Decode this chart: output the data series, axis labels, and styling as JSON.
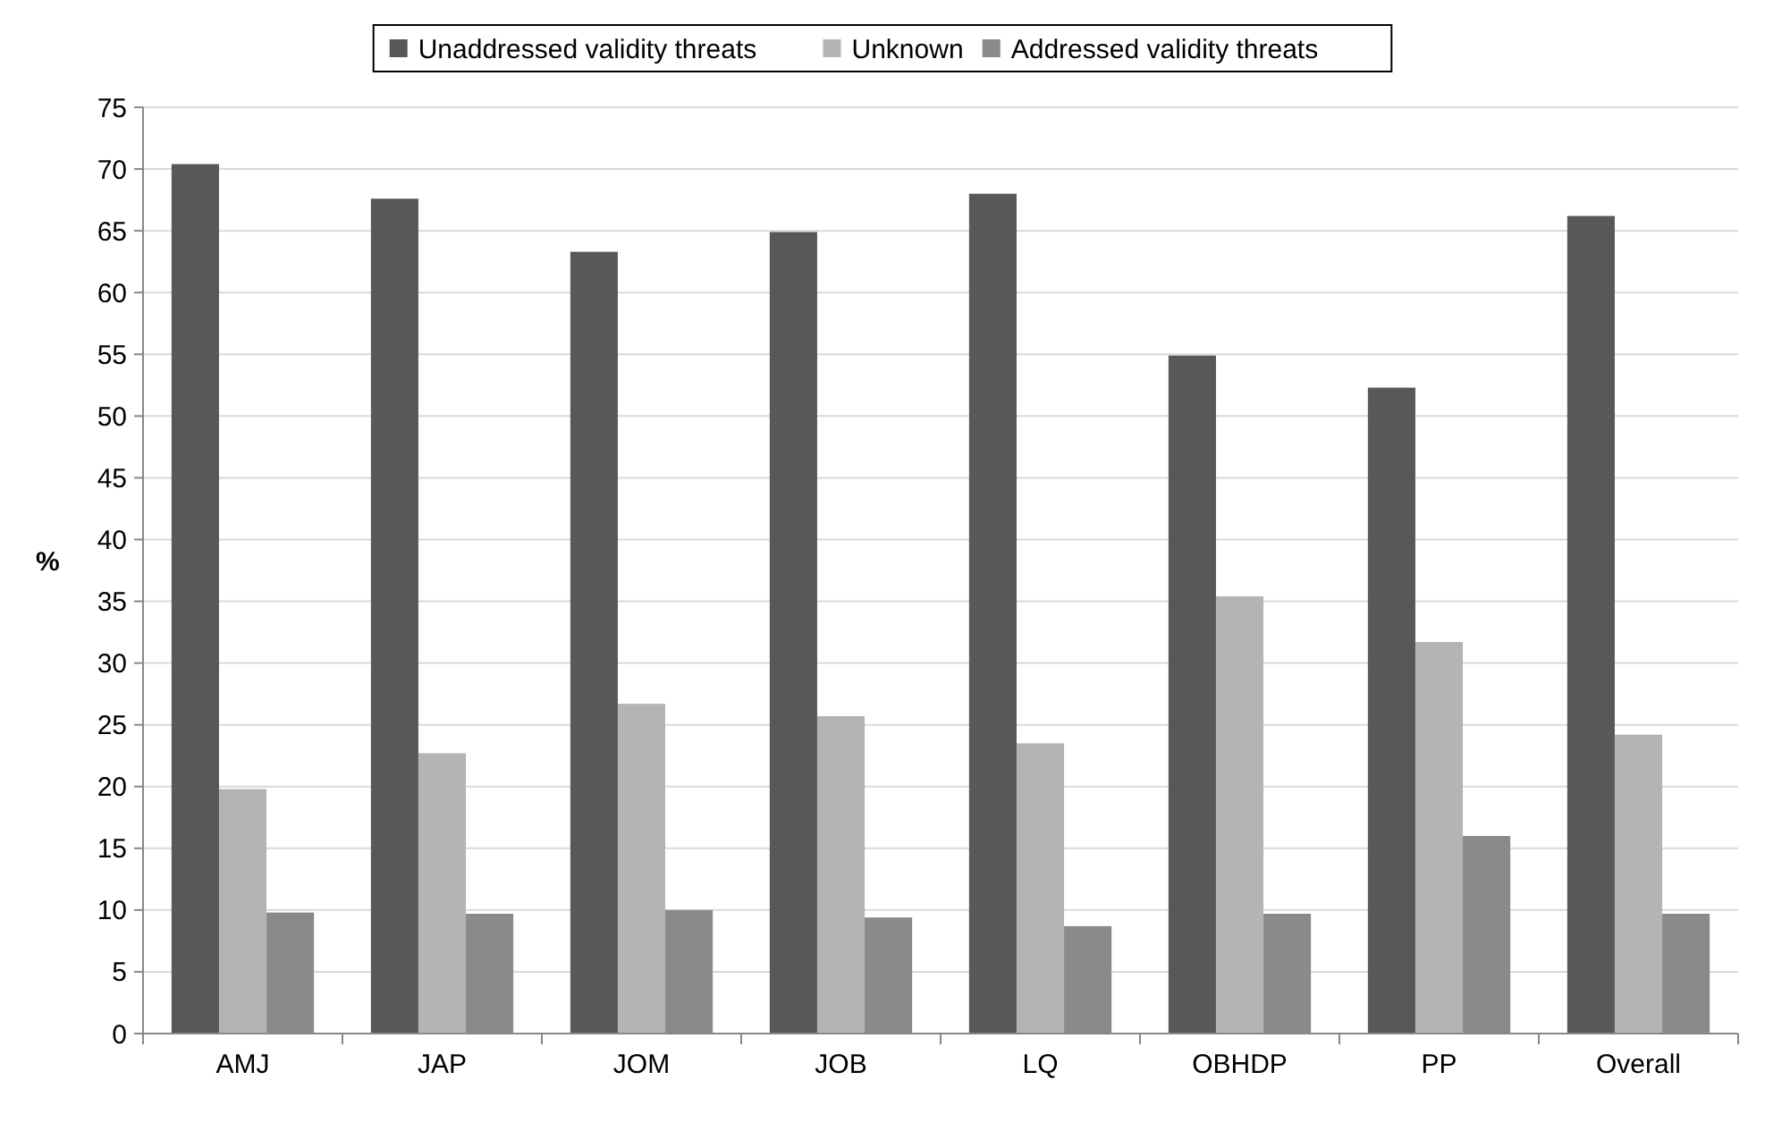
{
  "chart_data": {
    "type": "bar",
    "ylabel": "%",
    "categories": [
      "AMJ",
      "JAP",
      "JOM",
      "JOB",
      "LQ",
      "OBHDP",
      "PP",
      "Overall"
    ],
    "series": [
      {
        "name": "Unaddressed validity threats",
        "color": "#585858",
        "values": [
          70.4,
          67.6,
          63.3,
          64.9,
          68.0,
          54.9,
          52.3,
          66.2
        ]
      },
      {
        "name": "Unknown",
        "color": "#b4b4b4",
        "values": [
          19.8,
          22.7,
          26.7,
          25.7,
          23.5,
          35.4,
          31.7,
          24.2
        ]
      },
      {
        "name": "Addressed validity threats",
        "color": "#8a8a8a",
        "values": [
          9.8,
          9.7,
          10.0,
          9.4,
          8.7,
          9.7,
          16.0,
          9.7
        ]
      }
    ],
    "ylim": [
      0,
      75
    ],
    "yticks": [
      0,
      5,
      10,
      15,
      20,
      25,
      30,
      35,
      40,
      45,
      50,
      55,
      60,
      65,
      70,
      75
    ],
    "grid": "y",
    "legend": "top"
  }
}
